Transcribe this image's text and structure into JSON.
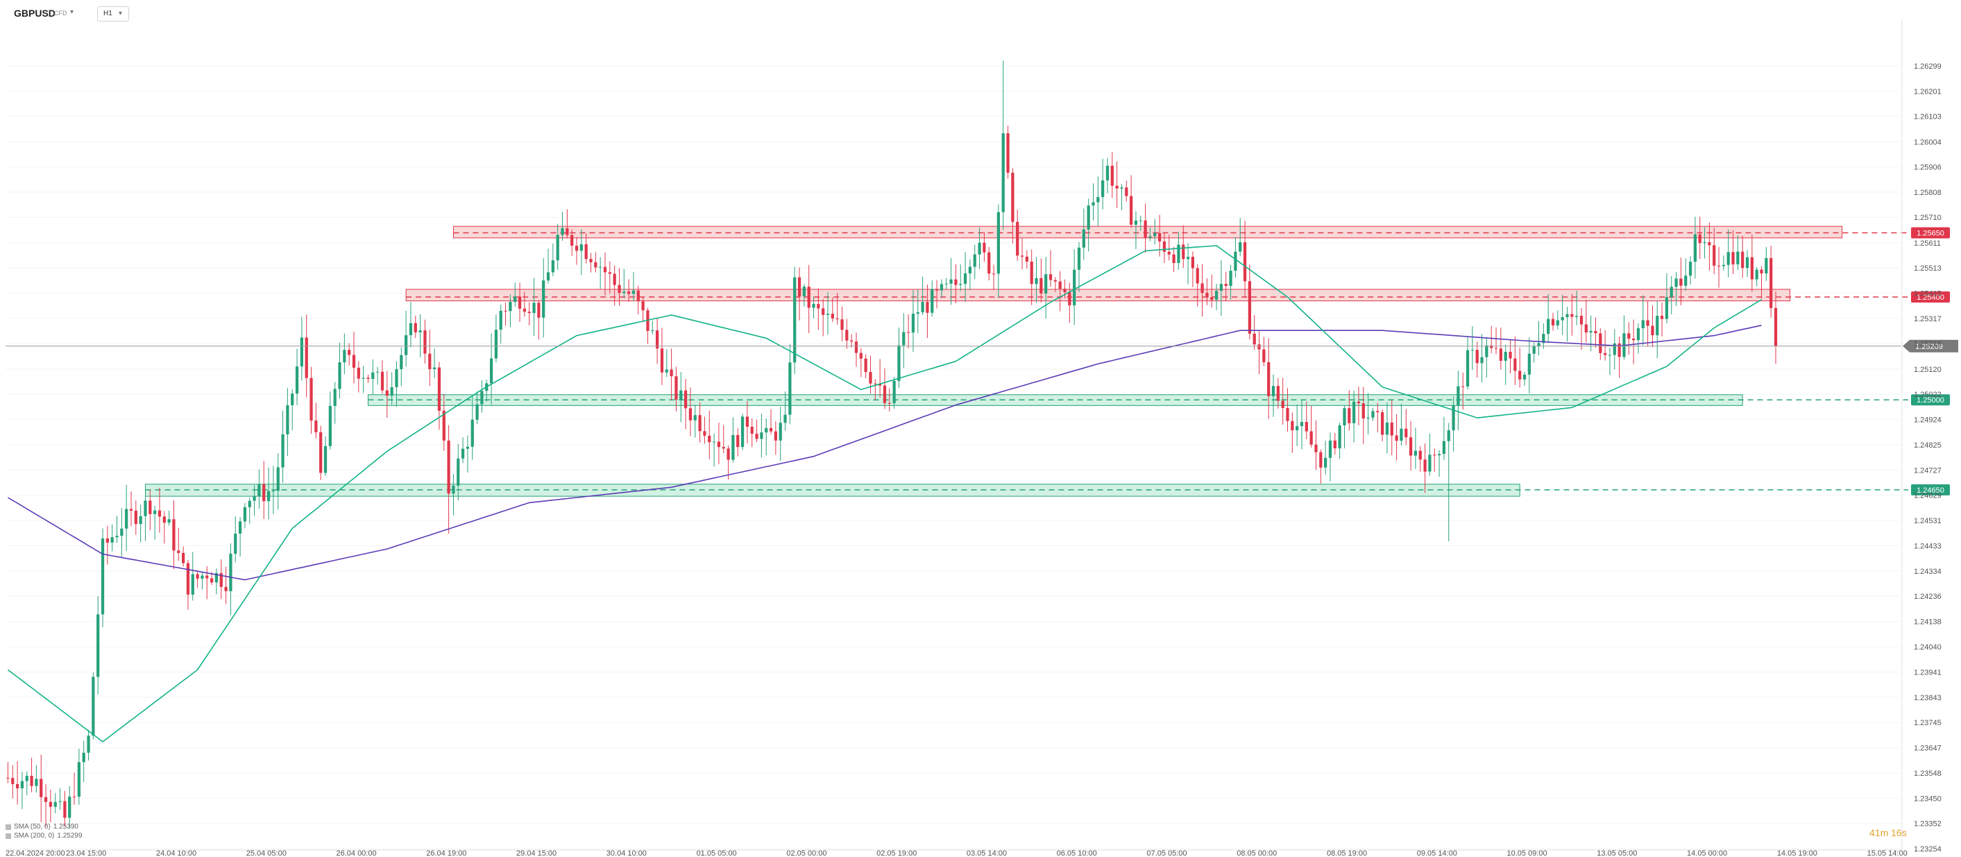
{
  "header": {
    "symbol": "GBPUSD",
    "instrument_type": "CFD",
    "timeframe": "H1"
  },
  "legend": [
    {
      "name": "SMA (50, 0)",
      "value": "1.25390"
    },
    {
      "name": "SMA (200, 0)",
      "value": "1.25299"
    }
  ],
  "countdown": "41m 16s",
  "colors": {
    "up": "#26a17b",
    "down": "#e0364a",
    "sma50": "#10b387",
    "sma200": "#5b3bb6",
    "resistance_fill": "#f8d1d1",
    "support_fill": "#c9f0dd"
  },
  "chart_data": {
    "type": "candlestick",
    "y_range": [
      1.23254,
      1.26399
    ],
    "y_ticks": [
      "1.26299",
      "1.26201",
      "1.26103",
      "1.26004",
      "1.25906",
      "1.25808",
      "1.25710",
      "1.25611",
      "1.25513",
      "1.25415",
      "1.25317",
      "1.25219",
      "1.25120",
      "1.25022",
      "1.24924",
      "1.24825",
      "1.24727",
      "1.24629",
      "1.24531",
      "1.24433",
      "1.24334",
      "1.24236",
      "1.24138",
      "1.24040",
      "1.23941",
      "1.23843",
      "1.23745",
      "1.23647",
      "1.23548",
      "1.23450",
      "1.23352",
      "1.23254"
    ],
    "x_ticks": [
      {
        "i": 0,
        "label": "22.04.2024 20:00"
      },
      {
        "i": 19,
        "label": "23.04 15:00"
      },
      {
        "i": 38,
        "label": "24.04 10:00"
      },
      {
        "i": 57,
        "label": "25.04 05:00"
      },
      {
        "i": 76,
        "label": "26.04 00:00"
      },
      {
        "i": 95,
        "label": "26.04 19:00"
      },
      {
        "i": 114,
        "label": "29.04 15:00"
      },
      {
        "i": 133,
        "label": "30.04 10:00"
      },
      {
        "i": 152,
        "label": "01.05 05:00"
      },
      {
        "i": 171,
        "label": "02.05 00:00"
      },
      {
        "i": 190,
        "label": "02.05 19:00"
      },
      {
        "i": 209,
        "label": "03.05 14:00"
      },
      {
        "i": 228,
        "label": "06.05 10:00"
      },
      {
        "i": 247,
        "label": "07.05 05:00"
      },
      {
        "i": 266,
        "label": "08.05 00:00"
      },
      {
        "i": 285,
        "label": "08.05 19:00"
      },
      {
        "i": 304,
        "label": "09.05 14:00"
      },
      {
        "i": 323,
        "label": "10.05 09:00"
      },
      {
        "i": 342,
        "label": "13.05 05:00"
      },
      {
        "i": 361,
        "label": "14.05 00:00"
      },
      {
        "i": 380,
        "label": "14.05 19:00"
      },
      {
        "i": 399,
        "label": "15.05 14:00"
      }
    ],
    "anchors": [
      [
        0,
        1.2353
      ],
      [
        6,
        1.2352
      ],
      [
        12,
        1.2337
      ],
      [
        17,
        1.2368
      ],
      [
        20,
        1.2442
      ],
      [
        24,
        1.2452
      ],
      [
        30,
        1.246
      ],
      [
        34,
        1.245
      ],
      [
        38,
        1.2428
      ],
      [
        42,
        1.2433
      ],
      [
        46,
        1.243
      ],
      [
        50,
        1.2462
      ],
      [
        56,
        1.2465
      ],
      [
        62,
        1.2522
      ],
      [
        66,
        1.247
      ],
      [
        70,
        1.2517
      ],
      [
        74,
        1.2512
      ],
      [
        80,
        1.2505
      ],
      [
        86,
        1.253
      ],
      [
        90,
        1.251
      ],
      [
        93,
        1.2465
      ],
      [
        96,
        1.248
      ],
      [
        100,
        1.25
      ],
      [
        104,
        1.2535
      ],
      [
        108,
        1.254
      ],
      [
        112,
        1.2535
      ],
      [
        116,
        1.2563
      ],
      [
        120,
        1.2562
      ],
      [
        124,
        1.2555
      ],
      [
        128,
        1.2545
      ],
      [
        132,
        1.254
      ],
      [
        136,
        1.2525
      ],
      [
        140,
        1.2505
      ],
      [
        144,
        1.2495
      ],
      [
        148,
        1.2488
      ],
      [
        152,
        1.248
      ],
      [
        156,
        1.2492
      ],
      [
        160,
        1.2485
      ],
      [
        164,
        1.249
      ],
      [
        166,
        1.2545
      ],
      [
        170,
        1.2535
      ],
      [
        174,
        1.253
      ],
      [
        178,
        1.2525
      ],
      [
        182,
        1.251
      ],
      [
        186,
        1.2495
      ],
      [
        188,
        1.252
      ],
      [
        192,
        1.2535
      ],
      [
        196,
        1.254
      ],
      [
        200,
        1.2545
      ],
      [
        204,
        1.256
      ],
      [
        208,
        1.255
      ],
      [
        210,
        1.2605
      ],
      [
        212,
        1.2565
      ],
      [
        216,
        1.2545
      ],
      [
        220,
        1.2545
      ],
      [
        224,
        1.254
      ],
      [
        228,
        1.2575
      ],
      [
        232,
        1.259
      ],
      [
        236,
        1.2575
      ],
      [
        240,
        1.2565
      ],
      [
        244,
        1.256
      ],
      [
        248,
        1.2555
      ],
      [
        252,
        1.254
      ],
      [
        256,
        1.2545
      ],
      [
        260,
        1.256
      ],
      [
        262,
        1.253
      ],
      [
        266,
        1.2505
      ],
      [
        270,
        1.2495
      ],
      [
        274,
        1.2485
      ],
      [
        278,
        1.2475
      ],
      [
        282,
        1.2495
      ],
      [
        286,
        1.2495
      ],
      [
        290,
        1.249
      ],
      [
        294,
        1.2485
      ],
      [
        298,
        1.2478
      ],
      [
        300,
        1.2475
      ],
      [
        304,
        1.249
      ],
      [
        308,
        1.2515
      ],
      [
        312,
        1.252
      ],
      [
        316,
        1.2515
      ],
      [
        320,
        1.251
      ],
      [
        324,
        1.253
      ],
      [
        328,
        1.2535
      ],
      [
        332,
        1.2528
      ],
      [
        336,
        1.2522
      ],
      [
        340,
        1.252
      ],
      [
        344,
        1.2528
      ],
      [
        348,
        1.253
      ],
      [
        352,
        1.2545
      ],
      [
        356,
        1.256
      ],
      [
        360,
        1.2555
      ],
      [
        364,
        1.2557
      ],
      [
        368,
        1.255
      ],
      [
        371,
        1.2555
      ],
      [
        373,
        1.2521
      ]
    ],
    "sma50": [
      [
        0,
        1.2395
      ],
      [
        20,
        1.2367
      ],
      [
        40,
        1.2395
      ],
      [
        60,
        1.245
      ],
      [
        80,
        1.248
      ],
      [
        100,
        1.2504
      ],
      [
        120,
        1.2525
      ],
      [
        140,
        1.2533
      ],
      [
        160,
        1.2524
      ],
      [
        180,
        1.2504
      ],
      [
        200,
        1.2515
      ],
      [
        220,
        1.2538
      ],
      [
        240,
        1.2558
      ],
      [
        255,
        1.256
      ],
      [
        270,
        1.254
      ],
      [
        290,
        1.2505
      ],
      [
        310,
        1.2493
      ],
      [
        330,
        1.2497
      ],
      [
        350,
        1.2513
      ],
      [
        360,
        1.2528
      ],
      [
        370,
        1.2539
      ]
    ],
    "sma200": [
      [
        0,
        1.2462
      ],
      [
        20,
        1.244
      ],
      [
        50,
        1.243
      ],
      [
        80,
        1.2442
      ],
      [
        110,
        1.246
      ],
      [
        140,
        1.2466
      ],
      [
        170,
        1.2478
      ],
      [
        200,
        1.2498
      ],
      [
        230,
        1.2514
      ],
      [
        260,
        1.2527
      ],
      [
        290,
        1.2527
      ],
      [
        320,
        1.2523
      ],
      [
        340,
        1.2521
      ],
      [
        360,
        1.2525
      ],
      [
        370,
        1.2529
      ]
    ],
    "zones": [
      {
        "kind": "resistance",
        "level": 1.2565,
        "label": "1.25650",
        "from": 94,
        "to": 387,
        "band": [
          1.2563,
          1.25675
        ]
      },
      {
        "kind": "resistance",
        "level": 1.254,
        "label": "1.25400",
        "from": 84,
        "to": 376,
        "band": [
          1.25385,
          1.2543
        ]
      },
      {
        "kind": "support",
        "level": 1.25,
        "label": "1.25000",
        "from": 76,
        "to": 366,
        "band": [
          1.24978,
          1.2502
        ]
      },
      {
        "kind": "support",
        "level": 1.2465,
        "label": "1.24650",
        "from": 29,
        "to": 319,
        "band": [
          1.24625,
          1.24672
        ]
      }
    ],
    "current_price": "1.25209",
    "current_value": 1.25209
  }
}
